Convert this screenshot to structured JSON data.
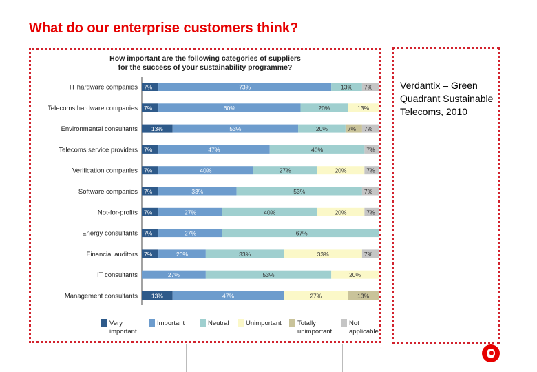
{
  "slide": {
    "title": "What do our enterprise customers think?",
    "source": "Verdantix – Green Quadrant Sustainable Telecoms, 2010"
  },
  "colors": {
    "very_important": "#2e5a8a",
    "important": "#6d9ccd",
    "neutral": "#9fcfcf",
    "unimportant": "#fbf8c8",
    "totally_unimportant": "#c9c39a",
    "not_applicable": "#c5c5c5",
    "accent": "#e60000"
  },
  "chart_data": {
    "type": "bar",
    "stacked": true,
    "orientation": "horizontal",
    "title_lines": [
      "How important are the following categories of suppliers",
      "for the success of your sustainability programme?"
    ],
    "categories": [
      "IT hardware companies",
      "Telecoms hardware companies",
      "Environmental consultants",
      "Telecoms service providers",
      "Verification companies",
      "Software companies",
      "Not-for-profits",
      "Energy consultants",
      "Financial auditors",
      "IT consultants",
      "Management consultants"
    ],
    "series": [
      {
        "name": "Very important",
        "color": "#2e5a8a",
        "values": [
          7,
          7,
          13,
          7,
          7,
          7,
          7,
          7,
          7,
          0,
          13
        ]
      },
      {
        "name": "Important",
        "color": "#6d9ccd",
        "values": [
          73,
          60,
          53,
          47,
          40,
          33,
          27,
          27,
          20,
          27,
          47
        ]
      },
      {
        "name": "Neutral",
        "color": "#9fcfcf",
        "values": [
          13,
          20,
          20,
          40,
          27,
          53,
          40,
          67,
          33,
          53,
          0
        ]
      },
      {
        "name": "Unimportant",
        "color": "#fbf8c8",
        "values": [
          0,
          13,
          0,
          0,
          20,
          0,
          20,
          0,
          33,
          20,
          27
        ]
      },
      {
        "name": "Totally unimportant",
        "color": "#c9c39a",
        "values": [
          0,
          0,
          7,
          0,
          0,
          0,
          0,
          0,
          0,
          0,
          13
        ]
      },
      {
        "name": "Not applicable",
        "color": "#c5c5c5",
        "values": [
          7,
          0,
          7,
          7,
          7,
          7,
          7,
          0,
          7,
          0,
          0
        ]
      }
    ],
    "legend": [
      {
        "lines": [
          "Very",
          "important"
        ],
        "color": "#2e5a8a"
      },
      {
        "lines": [
          "Important"
        ],
        "color": "#6d9ccd"
      },
      {
        "lines": [
          "Neutral"
        ],
        "color": "#9fcfcf"
      },
      {
        "lines": [
          "Unimportant"
        ],
        "color": "#fbf8c8"
      },
      {
        "lines": [
          "Totally",
          "unimportant"
        ],
        "color": "#c9c39a"
      },
      {
        "lines": [
          "Not",
          "applicable"
        ],
        "color": "#c5c5c5"
      }
    ],
    "legend_position": "bottom",
    "value_suffix": "%",
    "xlim": [
      0,
      100
    ],
    "grid": false
  }
}
